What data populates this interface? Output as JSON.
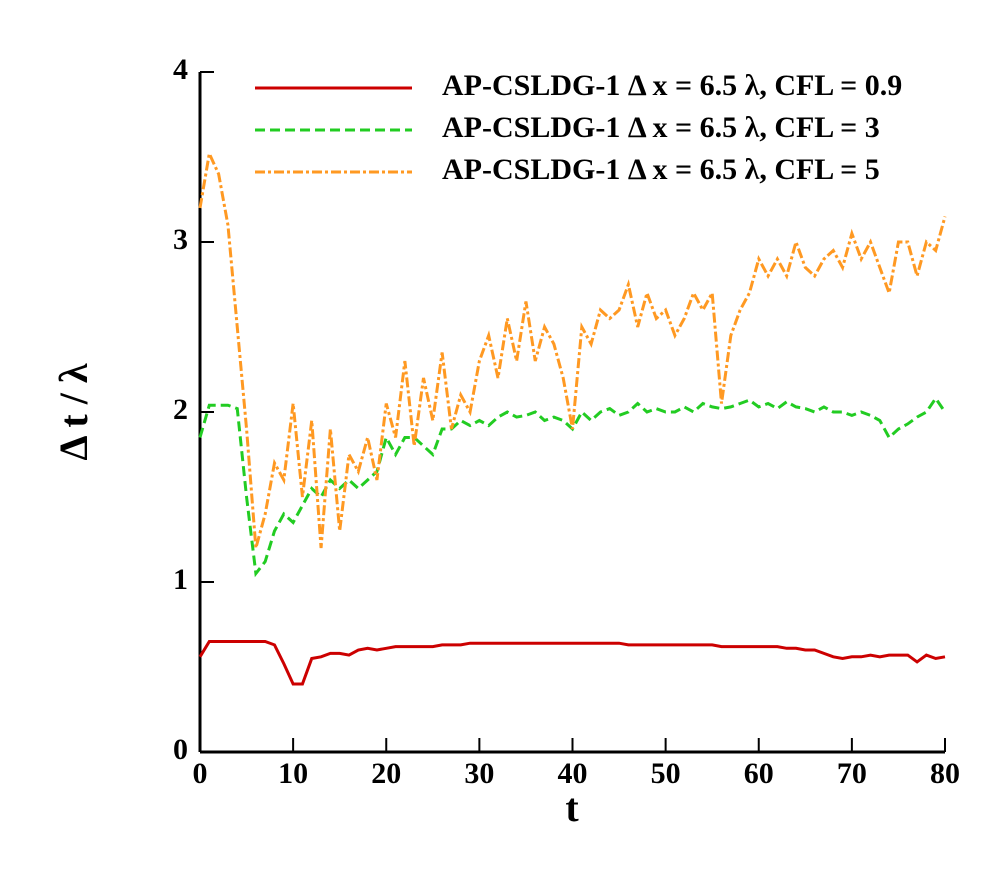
{
  "chart_data": {
    "type": "line",
    "xlabel": "t",
    "ylabel": "Δ t / λ",
    "x": [
      0,
      1,
      2,
      3,
      4,
      5,
      6,
      7,
      8,
      9,
      10,
      11,
      12,
      13,
      14,
      15,
      16,
      17,
      18,
      19,
      20,
      21,
      22,
      23,
      24,
      25,
      26,
      27,
      28,
      29,
      30,
      31,
      32,
      33,
      34,
      35,
      36,
      37,
      38,
      39,
      40,
      41,
      42,
      43,
      44,
      45,
      46,
      47,
      48,
      49,
      50,
      51,
      52,
      53,
      54,
      55,
      56,
      57,
      58,
      59,
      60,
      61,
      62,
      63,
      64,
      65,
      66,
      67,
      68,
      69,
      70,
      71,
      72,
      73,
      74,
      75,
      76,
      77,
      78,
      79,
      80
    ],
    "series": [
      {
        "name": "AP-CSLDG-1 Δ x = 6.5 λ, CFL = 0.9",
        "color": "#cc0000",
        "dash": "solid",
        "values": [
          0.56,
          0.65,
          0.65,
          0.65,
          0.65,
          0.65,
          0.65,
          0.65,
          0.63,
          0.52,
          0.4,
          0.4,
          0.55,
          0.56,
          0.58,
          0.58,
          0.57,
          0.6,
          0.61,
          0.6,
          0.61,
          0.62,
          0.62,
          0.62,
          0.62,
          0.62,
          0.63,
          0.63,
          0.63,
          0.64,
          0.64,
          0.64,
          0.64,
          0.64,
          0.64,
          0.64,
          0.64,
          0.64,
          0.64,
          0.64,
          0.64,
          0.64,
          0.64,
          0.64,
          0.64,
          0.64,
          0.63,
          0.63,
          0.63,
          0.63,
          0.63,
          0.63,
          0.63,
          0.63,
          0.63,
          0.63,
          0.62,
          0.62,
          0.62,
          0.62,
          0.62,
          0.62,
          0.62,
          0.61,
          0.61,
          0.6,
          0.6,
          0.58,
          0.56,
          0.55,
          0.56,
          0.56,
          0.57,
          0.56,
          0.57,
          0.57,
          0.57,
          0.53,
          0.57,
          0.55,
          0.56
        ]
      },
      {
        "name": "AP-CSLDG-1 Δ x = 6.5 λ, CFL = 3",
        "color": "#22cc22",
        "dash": "dashed",
        "values": [
          1.85,
          2.04,
          2.04,
          2.04,
          2.02,
          1.5,
          1.05,
          1.12,
          1.3,
          1.4,
          1.35,
          1.45,
          1.55,
          1.5,
          1.6,
          1.55,
          1.6,
          1.55,
          1.6,
          1.65,
          1.85,
          1.75,
          1.85,
          1.85,
          1.8,
          1.75,
          1.9,
          1.9,
          1.95,
          1.92,
          1.95,
          1.92,
          1.97,
          2.0,
          1.97,
          1.98,
          2.0,
          1.95,
          1.97,
          1.95,
          1.9,
          2.0,
          1.95,
          2.0,
          2.02,
          1.98,
          2.0,
          2.05,
          2.0,
          2.02,
          2.0,
          2.0,
          2.03,
          2.0,
          2.05,
          2.03,
          2.02,
          2.03,
          2.05,
          2.07,
          2.03,
          2.05,
          2.02,
          2.06,
          2.03,
          2.02,
          2.0,
          2.03,
          2.0,
          2.0,
          1.98,
          2.0,
          1.98,
          1.95,
          1.85,
          1.9,
          1.93,
          1.97,
          2.0,
          2.08,
          2.0
        ]
      },
      {
        "name": "AP-CSLDG-1 Δ x = 6.5 λ, CFL = 5",
        "color": "#ff9922",
        "dash": "dashdot",
        "values": [
          3.2,
          3.52,
          3.4,
          3.1,
          2.5,
          1.9,
          1.2,
          1.4,
          1.7,
          1.6,
          2.05,
          1.5,
          1.95,
          1.2,
          1.9,
          1.3,
          1.75,
          1.65,
          1.85,
          1.6,
          2.05,
          1.85,
          2.3,
          1.8,
          2.2,
          1.95,
          2.35,
          1.9,
          2.1,
          2.0,
          2.3,
          2.45,
          2.2,
          2.55,
          2.3,
          2.65,
          2.3,
          2.5,
          2.4,
          2.2,
          1.9,
          2.5,
          2.4,
          2.6,
          2.55,
          2.6,
          2.75,
          2.5,
          2.7,
          2.55,
          2.6,
          2.45,
          2.55,
          2.7,
          2.6,
          2.7,
          2.05,
          2.45,
          2.6,
          2.7,
          2.9,
          2.8,
          2.9,
          2.8,
          3.0,
          2.85,
          2.8,
          2.9,
          2.95,
          2.85,
          3.05,
          2.9,
          3.0,
          2.85,
          2.7,
          3.0,
          3.0,
          2.8,
          3.0,
          2.95,
          3.15
        ]
      }
    ],
    "xlim": [
      0,
      80
    ],
    "xticks": [
      0,
      10,
      20,
      30,
      40,
      50,
      60,
      70,
      80
    ],
    "ylim": [
      0,
      4
    ],
    "yticks": [
      0,
      1,
      2,
      3,
      4
    ]
  }
}
